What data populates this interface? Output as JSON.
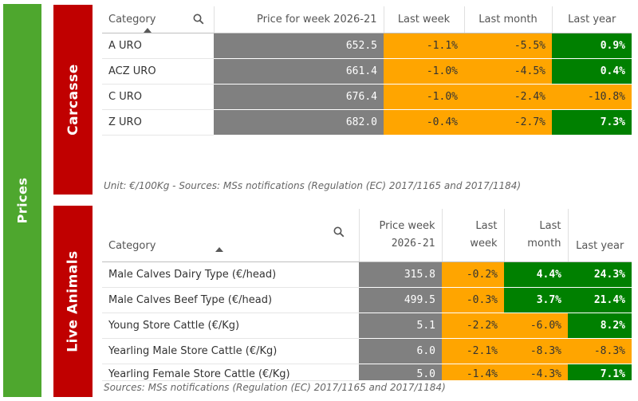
{
  "sidebar": {
    "label": "Prices"
  },
  "carcasse": {
    "title": "Carcasse",
    "headers": {
      "category": "Category",
      "price": "Price for week 2026-21",
      "last_week": "Last week",
      "last_month": "Last month",
      "last_year": "Last year"
    },
    "rows": [
      {
        "category": "A URO",
        "price": "652.5",
        "last_week": "-1.1%",
        "last_month": "-5.5%",
        "last_year": "0.9%"
      },
      {
        "category": "ACZ URO",
        "price": "661.4",
        "last_week": "-1.0%",
        "last_month": "-4.5%",
        "last_year": "0.4%"
      },
      {
        "category": "C URO",
        "price": "676.4",
        "last_week": "-1.0%",
        "last_month": "-2.4%",
        "last_year": "-10.8%"
      },
      {
        "category": "Z URO",
        "price": "682.0",
        "last_week": "-0.4%",
        "last_month": "-2.7%",
        "last_year": "7.3%"
      }
    ],
    "note": "Unit: €/100Kg - Sources: MSs notifications (Regulation (EC) 2017/1165 and 2017/1184)"
  },
  "live": {
    "title": "Live Animals",
    "headers": {
      "category": "Category",
      "price_line1": "Price week",
      "price_line2": "2026-21",
      "last_week_line1": "Last",
      "last_week_line2": "week",
      "last_month_line1": "Last",
      "last_month_line2": "month",
      "last_year": "Last year"
    },
    "rows": [
      {
        "category": "Male Calves Dairy Type (€/head)",
        "price": "315.8",
        "last_week": "-0.2%",
        "last_month": "4.4%",
        "last_year": "24.3%"
      },
      {
        "category": "Male Calves Beef Type (€/head)",
        "price": "499.5",
        "last_week": "-0.3%",
        "last_month": "3.7%",
        "last_year": "21.4%"
      },
      {
        "category": "Young Store Cattle (€/Kg)",
        "price": "5.1",
        "last_week": "-2.2%",
        "last_month": "-6.0%",
        "last_year": "8.2%"
      },
      {
        "category": "Yearling Male Store Cattle (€/Kg)",
        "price": "6.0",
        "last_week": "-2.1%",
        "last_month": "-8.3%",
        "last_year": "-8.3%"
      },
      {
        "category": "Yearling Female Store Cattle (€/Kg)",
        "price": "5.0",
        "last_week": "-1.4%",
        "last_month": "-4.3%",
        "last_year": "7.1%"
      }
    ],
    "note": "Sources: MSs notifications (Regulation (EC) 2017/1165 and 2017/1184)"
  },
  "colors": {
    "green": "#008000",
    "orange": "#ffa500",
    "gray": "#808080",
    "red": "#c00000",
    "sidebar": "#4ea72e"
  },
  "icons": {
    "search": "search-icon",
    "sort": "sort-ascending-icon"
  }
}
